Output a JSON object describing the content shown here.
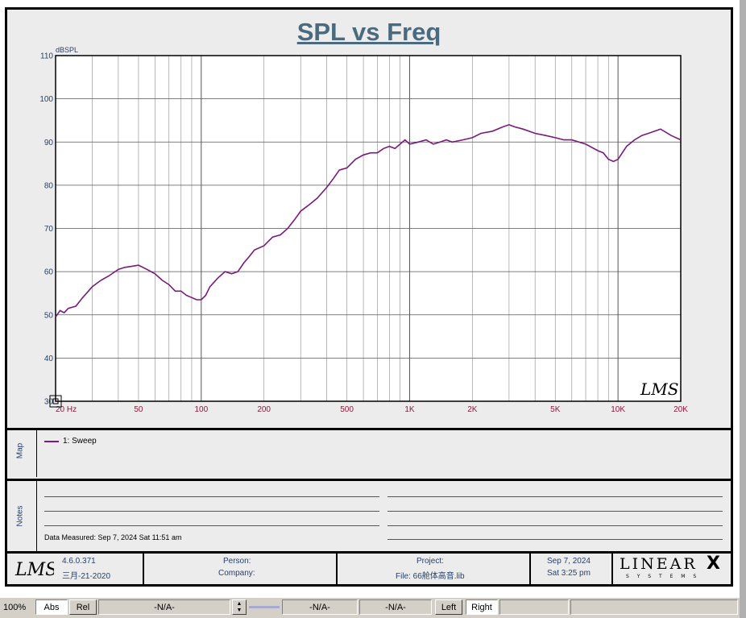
{
  "title": "SPL vs Freq",
  "chart_data": {
    "type": "line",
    "ylabel": "dBSPL",
    "xscale": "log",
    "xlim": [
      20,
      20000
    ],
    "ylim": [
      30,
      110
    ],
    "grid": true,
    "yticks": [
      30,
      40,
      50,
      60,
      70,
      80,
      90,
      100,
      110
    ],
    "xticks": [
      {
        "value": 20,
        "label": "20 Hz"
      },
      {
        "value": 50,
        "label": "50"
      },
      {
        "value": 100,
        "label": "100"
      },
      {
        "value": 200,
        "label": "200"
      },
      {
        "value": 500,
        "label": "500"
      },
      {
        "value": 1000,
        "label": "1K"
      },
      {
        "value": 2000,
        "label": "2K"
      },
      {
        "value": 5000,
        "label": "5K"
      },
      {
        "value": 10000,
        "label": "10K"
      },
      {
        "value": 20000,
        "label": "20K"
      }
    ],
    "series": [
      {
        "name": "1: Sweep",
        "color": "#7a1a7a",
        "x": [
          20,
          21,
          22,
          23,
          25,
          27,
          30,
          33,
          36,
          40,
          43,
          46,
          50,
          55,
          60,
          65,
          70,
          75,
          80,
          85,
          90,
          95,
          100,
          105,
          110,
          120,
          130,
          140,
          150,
          160,
          170,
          180,
          200,
          220,
          240,
          260,
          280,
          300,
          330,
          360,
          400,
          430,
          460,
          500,
          550,
          600,
          650,
          700,
          750,
          800,
          850,
          900,
          950,
          1000,
          1100,
          1200,
          1300,
          1400,
          1500,
          1600,
          1800,
          2000,
          2200,
          2500,
          2800,
          3000,
          3200,
          3500,
          4000,
          4500,
          5000,
          5500,
          6000,
          7000,
          8000,
          8500,
          9000,
          9500,
          10000,
          11000,
          12000,
          13000,
          14000,
          15000,
          16000,
          18000,
          20000
        ],
        "y": [
          49.5,
          51,
          50.5,
          51.5,
          52,
          54,
          56.5,
          58,
          59,
          60.5,
          61,
          61.2,
          61.5,
          60.5,
          59.5,
          58,
          57,
          55.5,
          55.5,
          54.5,
          54,
          53.5,
          53.5,
          54.5,
          56.5,
          58.5,
          60,
          59.5,
          60,
          62,
          63.5,
          65,
          66,
          68,
          68.5,
          70,
          72,
          74,
          75.5,
          77,
          79.5,
          81.5,
          83.5,
          84,
          86,
          87,
          87.5,
          87.5,
          88.5,
          89,
          88.5,
          89.5,
          90.5,
          89.5,
          90,
          90.5,
          89.5,
          90,
          90.5,
          90,
          90.5,
          91,
          92,
          92.5,
          93.5,
          94,
          93.5,
          93,
          92,
          91.5,
          91,
          90.5,
          90.5,
          89.5,
          88,
          87.5,
          86,
          85.5,
          86,
          89,
          90.5,
          91.5,
          92,
          92.5,
          93,
          91.5,
          90.5
        ]
      }
    ]
  },
  "map_label": "Map",
  "notes_label": "Notes",
  "legend_entry": "1: Sweep",
  "data_measured": "Data Measured: Sep  7, 2024  Sat 11:51 am",
  "footer": {
    "version": "4.6.0.371",
    "version_date": "三月-21-2020",
    "person": "Person:",
    "company": "Company:",
    "project": "Project:",
    "file": "File: 66舱体高音.lib",
    "date": "Sep  7, 2024",
    "time": "Sat  3:25 pm",
    "logo_lms": "LMS",
    "logo_linear": "LINEAR",
    "logo_x": "X",
    "logo_systems": "S Y S T E M S"
  },
  "statusbar": {
    "zoom": "100%",
    "abs": "Abs",
    "rel": "Rel",
    "na1": "-N/A-",
    "na2": "-N/A-",
    "na3": "-N/A-",
    "left": "Left",
    "right": "Right"
  }
}
